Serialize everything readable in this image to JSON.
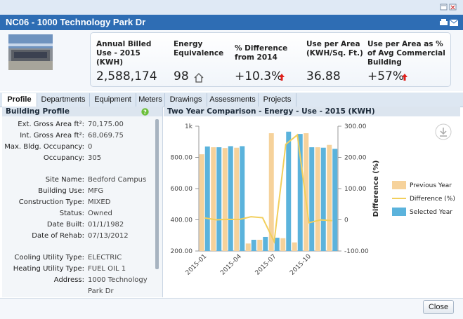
{
  "window": {
    "title": "NC06 - 1000 Technology Park Dr"
  },
  "metrics": [
    {
      "label": "Annual Billed Use - 2015 (KWH)",
      "value": "2,588,174"
    },
    {
      "label": "Energy Equivalence",
      "value": "98"
    },
    {
      "label": "% Difference from 2014",
      "value": "+10.3%"
    },
    {
      "label": "Use per Area (KWH/Sq. Ft.)",
      "value": "36.88"
    },
    {
      "label": "Use per Area as % of Avg Commercial Building",
      "value": "+57%"
    }
  ],
  "tabs": [
    "Profile",
    "Departments",
    "Equipment",
    "Meters",
    "Drawings",
    "Assessments",
    "Projects"
  ],
  "profile": {
    "title": "Building Profile",
    "groups": [
      [
        {
          "label": "Ext. Gross Area ft²:",
          "value": "70,175.00"
        },
        {
          "label": "Int. Gross Area ft²:",
          "value": "68,069.75"
        },
        {
          "label": "Max. Bldg. Occupancy:",
          "value": "0"
        },
        {
          "label": "Occupancy:",
          "value": "305"
        }
      ],
      [
        {
          "label": "Site Name:",
          "value": "Bedford Campus"
        },
        {
          "label": "Building Use:",
          "value": "MFG"
        },
        {
          "label": "Construction Type:",
          "value": "MIXED"
        },
        {
          "label": "Status:",
          "value": "Owned"
        },
        {
          "label": "Date Built:",
          "value": "01/1/1982"
        },
        {
          "label": "Date of Rehab:",
          "value": "07/13/2012"
        }
      ],
      [
        {
          "label": "Cooling Utility Type:",
          "value": "ELECTRIC"
        },
        {
          "label": "Heating Utility Type:",
          "value": "FUEL OIL 1"
        },
        {
          "label": "Address:",
          "value": "1000 Technology Park Dr"
        }
      ]
    ]
  },
  "chart_data": {
    "type": "bar",
    "title": "Two Year Comparison - Energy - Use - 2015 (KWH)",
    "categories": [
      "2015-01",
      null,
      null,
      "2015-04",
      null,
      null,
      "2015-07",
      null,
      null,
      "2015-10",
      null,
      null
    ],
    "series": [
      {
        "name": "Previous Year",
        "color": "#f6d29b",
        "values": [
          820,
          865,
          860,
          862,
          248,
          272,
          955,
          282,
          255,
          955,
          865,
          880
        ]
      },
      {
        "name": "Difference (%)",
        "color": "#f2cf5c",
        "axis": "y2",
        "type": "line",
        "values": [
          6,
          0,
          1.4,
          1.2,
          9.7,
          6.6,
          -70,
          242,
          272,
          -9.4,
          -0.3,
          -2.8
        ]
      },
      {
        "name": "Selected Year",
        "color": "#5bb3dc",
        "values": [
          870,
          865,
          872,
          872,
          272,
          290,
          285,
          965,
          950,
          865,
          862,
          855
        ]
      }
    ],
    "ylim": [
      200,
      1000
    ],
    "yticks": [
      {
        "value": 200,
        "label": "200.00"
      },
      {
        "value": 400,
        "label": "400.00"
      },
      {
        "value": 600,
        "label": "600.00"
      },
      {
        "value": 800,
        "label": "800.00"
      },
      {
        "value": 1000,
        "label": "1k"
      }
    ],
    "y2label": "Difference (%)",
    "y2lim": [
      -100,
      300
    ],
    "y2ticks": [
      {
        "value": -100,
        "label": "-100.00"
      },
      0,
      {
        "value": 100,
        "label": "100.00"
      },
      {
        "value": 200,
        "label": "200.00"
      },
      {
        "value": 300,
        "label": "300.00"
      }
    ],
    "legend": "right"
  },
  "close_button": "Close"
}
